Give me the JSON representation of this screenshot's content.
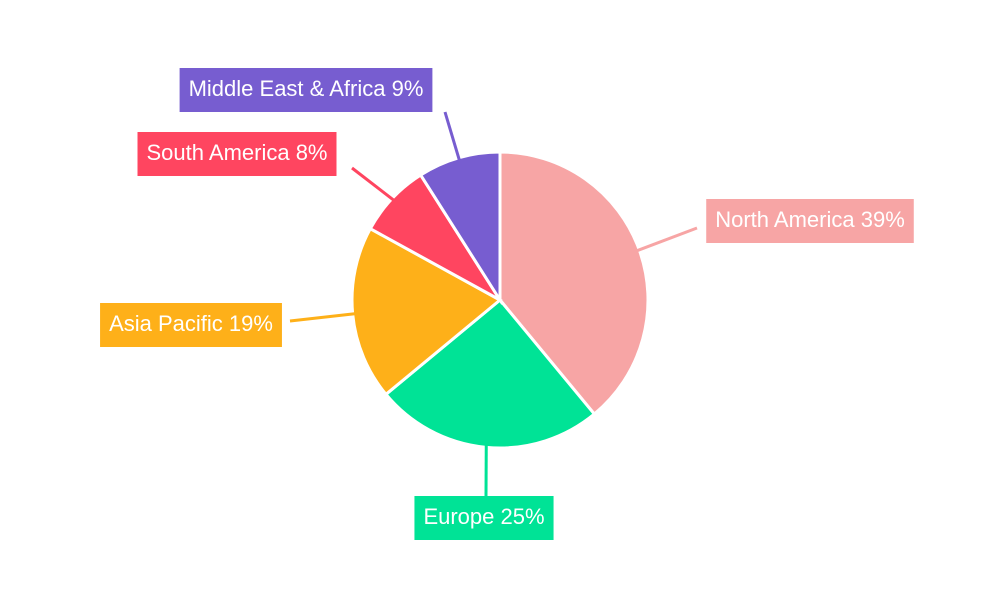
{
  "chart_data": {
    "type": "pie",
    "categories": [
      "North America",
      "Europe",
      "Asia Pacific",
      "South America",
      "Middle East & Africa"
    ],
    "values": [
      39,
      25,
      19,
      8,
      9
    ],
    "value_labels": [
      "39%",
      "25%",
      "19%",
      "8%",
      "9%"
    ],
    "colors": [
      "#f7a5a5",
      "#00e396",
      "#feb019",
      "#ff4560",
      "#775dd0"
    ]
  }
}
